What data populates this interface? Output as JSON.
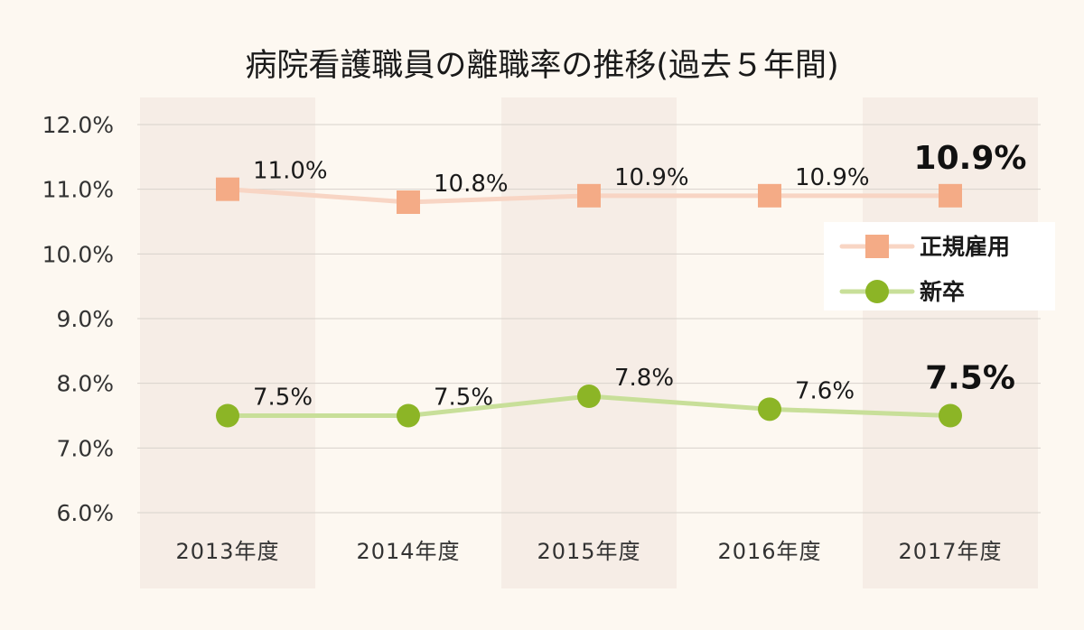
{
  "chart_data": {
    "type": "line",
    "title": "病院看護職員の離職率の推移(過去５年間)",
    "categories": [
      "2013年度",
      "2014年度",
      "2015年度",
      "2016年度",
      "2017年度"
    ],
    "ylim": [
      6.0,
      12.0
    ],
    "yticks": [
      "12.0%",
      "11.0%",
      "10.0%",
      "9.0%",
      "8.0%",
      "7.0%",
      "6.0%"
    ],
    "grid": true,
    "legend": "right",
    "series": [
      {
        "name": "正規雇用",
        "marker": "square",
        "values": [
          11.0,
          10.8,
          10.9,
          10.9,
          10.9
        ],
        "labels": [
          "11.0%",
          "10.8%",
          "10.9%",
          "10.9%",
          "10.9%"
        ],
        "line_color": "#f8d5c4",
        "marker_color": "#f4ab86"
      },
      {
        "name": "新卒",
        "marker": "circle",
        "values": [
          7.5,
          7.5,
          7.8,
          7.6,
          7.5
        ],
        "labels": [
          "7.5%",
          "7.5%",
          "7.8%",
          "7.6%",
          "7.5%"
        ],
        "line_color": "#c8df99",
        "marker_color": "#8cb526"
      }
    ],
    "band_color": "#f6ede6",
    "grid_color": "#d8d2cc"
  }
}
